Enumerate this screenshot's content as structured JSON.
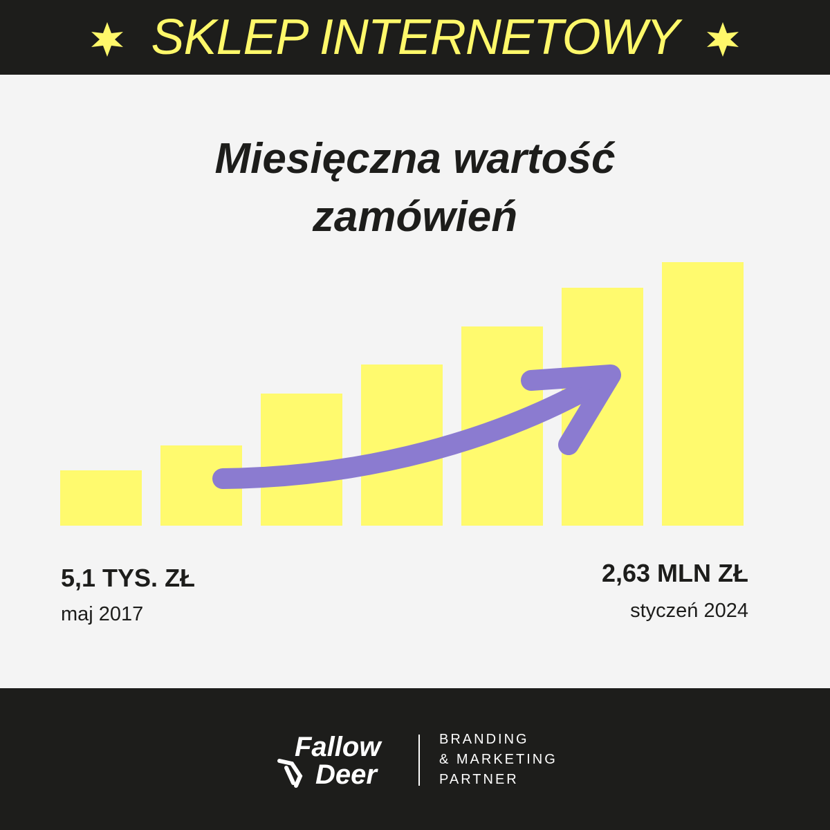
{
  "header": {
    "title": "SKLEP INTERNETOWY"
  },
  "title_lines": [
    "Miesięczna wartość",
    "zamówień"
  ],
  "start": {
    "value": "5,1 TYS. ZŁ",
    "date": "maj 2017"
  },
  "end": {
    "value": "2,63 MLN ZŁ",
    "date": "styczeń 2024"
  },
  "footer": {
    "logo_lines": [
      "Fallow",
      "Deer"
    ],
    "tagline_lines": [
      "BRANDING",
      "& MARKETING",
      "PARTNER"
    ]
  }
}
